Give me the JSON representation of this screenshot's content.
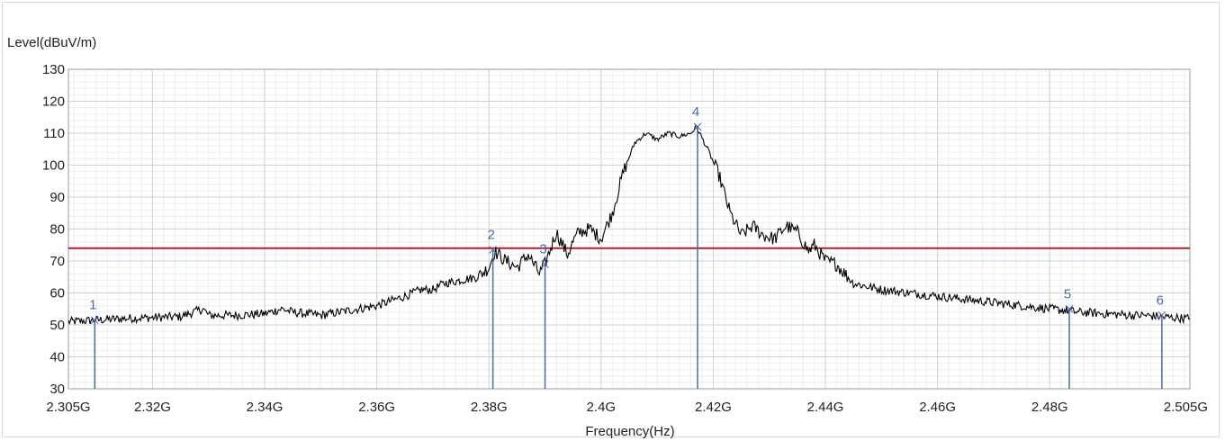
{
  "chart_data": {
    "type": "line",
    "title": "",
    "ylabel": "Level(dBuV/m)",
    "xlabel": "Frequency(Hz)",
    "xlim": [
      2.305,
      2.505
    ],
    "ylim": [
      30,
      130
    ],
    "x_unit": "GHz",
    "grid": true,
    "x_ticks": [
      {
        "value": 2.305,
        "label": "2.305G"
      },
      {
        "value": 2.32,
        "label": "2.32G"
      },
      {
        "value": 2.34,
        "label": "2.34G"
      },
      {
        "value": 2.36,
        "label": "2.36G"
      },
      {
        "value": 2.38,
        "label": "2.38G"
      },
      {
        "value": 2.4,
        "label": "2.4G"
      },
      {
        "value": 2.42,
        "label": "2.42G"
      },
      {
        "value": 2.44,
        "label": "2.44G"
      },
      {
        "value": 2.46,
        "label": "2.46G"
      },
      {
        "value": 2.48,
        "label": "2.48G"
      },
      {
        "value": 2.505,
        "label": "2.505G"
      }
    ],
    "y_ticks": [
      30,
      40,
      50,
      60,
      70,
      80,
      90,
      100,
      110,
      120,
      130
    ],
    "limit_line": {
      "value": 74,
      "color": "#b22222"
    },
    "series": [
      {
        "color": "#000000",
        "x": [
          2.305,
          2.31,
          2.315,
          2.32,
          2.325,
          2.329,
          2.33,
          2.335,
          2.34,
          2.343,
          2.345,
          2.35,
          2.355,
          2.36,
          2.365,
          2.368,
          2.37,
          2.372,
          2.375,
          2.378,
          2.38,
          2.381,
          2.383,
          2.385,
          2.387,
          2.389,
          2.39,
          2.391,
          2.392,
          2.394,
          2.395,
          2.396,
          2.398,
          2.4,
          2.402,
          2.404,
          2.406,
          2.408,
          2.41,
          2.412,
          2.414,
          2.416,
          2.417,
          2.419,
          2.421,
          2.423,
          2.425,
          2.427,
          2.429,
          2.431,
          2.433,
          2.435,
          2.437,
          2.438,
          2.44,
          2.442,
          2.445,
          2.45,
          2.455,
          2.46,
          2.465,
          2.47,
          2.475,
          2.48,
          2.483,
          2.485,
          2.49,
          2.495,
          2.497,
          2.5,
          2.505
        ],
        "y": [
          51,
          51.5,
          52,
          52.3,
          52.6,
          55,
          53,
          53,
          53.5,
          55,
          54,
          53,
          54.5,
          56,
          59,
          61,
          61,
          63,
          64,
          65,
          68,
          73,
          70,
          68,
          72,
          66,
          69,
          74,
          79,
          72,
          76,
          79,
          80,
          77,
          85,
          98,
          107,
          110,
          108,
          110,
          109,
          110,
          112,
          105,
          97,
          85,
          78,
          81,
          78,
          77,
          81,
          79,
          73,
          75,
          70,
          69,
          63,
          61,
          60,
          59,
          58,
          57,
          56,
          55,
          54.5,
          54,
          53.5,
          53,
          53,
          52.5,
          52
        ]
      }
    ],
    "markers": [
      {
        "label": "1",
        "x": 2.3097,
        "y": 51.5
      },
      {
        "label": "2",
        "x": 2.3807,
        "y": 73.5
      },
      {
        "label": "3",
        "x": 2.39,
        "y": 69
      },
      {
        "label": "4",
        "x": 2.4172,
        "y": 112
      },
      {
        "label": "5",
        "x": 2.4835,
        "y": 55
      },
      {
        "label": "6",
        "x": 2.5,
        "y": 53
      }
    ],
    "marker_color": "#4a6aa8"
  }
}
